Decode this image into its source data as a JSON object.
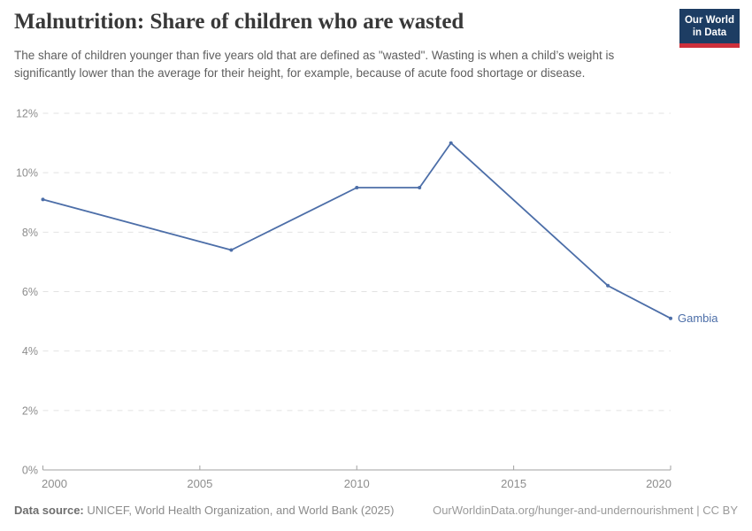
{
  "header": {
    "title": "Malnutrition: Share of children who are wasted",
    "subtitle": "The share of children younger than five years old that are defined as \"wasted\". Wasting is when a child’s weight is significantly lower than the average for their height, for example, because of acute food shortage or disease.",
    "logo": {
      "line1": "Our World",
      "line2": "in Data"
    }
  },
  "colors": {
    "line": "#4c6ea8",
    "grid": "#e2e2e2",
    "axis": "#a1a1a1",
    "tick_label": "#8d8d8d",
    "logo_bg": "#1d3d63",
    "logo_accent": "#cd303b"
  },
  "chart_data": {
    "type": "line",
    "title": "Malnutrition: Share of children who are wasted",
    "entity": "Gambia",
    "x": [
      2000,
      2006,
      2010,
      2012,
      2013,
      2018,
      2020
    ],
    "values": [
      9.1,
      7.4,
      9.5,
      9.5,
      11.0,
      6.2,
      5.1
    ],
    "unit": "%",
    "xlim": [
      2000,
      2020
    ],
    "ylim": [
      0,
      12
    ],
    "x_ticks": [
      2000,
      2005,
      2010,
      2015,
      2020
    ],
    "y_ticks": [
      0,
      2,
      4,
      6,
      8,
      10,
      12
    ],
    "grid": "horizontal-dashed",
    "legend": "end-of-line entity label"
  },
  "footer": {
    "source_label": "Data source:",
    "source_text": "UNICEF, World Health Organization, and World Bank (2025)",
    "credit": "OurWorldinData.org/hunger-and-undernourishment | CC BY"
  }
}
